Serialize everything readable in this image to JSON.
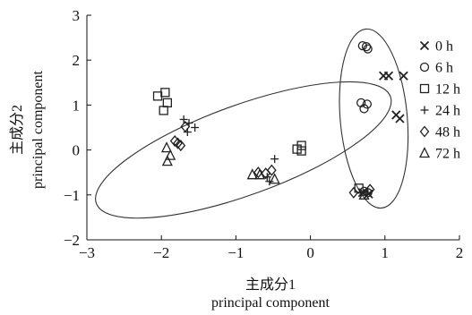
{
  "chart_data": {
    "type": "scatter",
    "xlabel_cn": "主成分1",
    "xlabel_en": "principal component",
    "ylabel_cn": "主成分2",
    "ylabel_en": "principal component",
    "xlim": [
      -3,
      2
    ],
    "ylim": [
      -2,
      3
    ],
    "xticks": [
      -3,
      -2,
      -1,
      0,
      1,
      2
    ],
    "yticks": [
      -2,
      -1,
      0,
      1,
      2,
      3
    ],
    "grid": false,
    "legend_position": "right",
    "marker_color": "#222222",
    "series": [
      {
        "name": "0 h",
        "marker": "x",
        "points": [
          [
            0.98,
            1.65
          ],
          [
            1.05,
            1.65
          ],
          [
            1.25,
            1.65
          ],
          [
            1.15,
            0.78
          ],
          [
            1.2,
            0.7
          ],
          [
            0.78,
            -0.98
          ],
          [
            0.7,
            -0.95
          ]
        ]
      },
      {
        "name": "6 h",
        "marker": "circle",
        "points": [
          [
            0.7,
            2.32
          ],
          [
            0.75,
            2.3
          ],
          [
            0.77,
            2.25
          ],
          [
            0.68,
            1.05
          ],
          [
            0.76,
            1.02
          ],
          [
            0.72,
            0.92
          ],
          [
            0.72,
            -0.92
          ],
          [
            0.77,
            -0.95
          ]
        ]
      },
      {
        "name": "12 h",
        "marker": "square",
        "points": [
          [
            -2.05,
            1.2
          ],
          [
            -1.95,
            1.28
          ],
          [
            -1.92,
            1.05
          ],
          [
            -1.97,
            0.88
          ],
          [
            -0.12,
            0.1
          ],
          [
            -0.18,
            0.02
          ],
          [
            -0.12,
            -0.02
          ],
          [
            0.65,
            -0.85
          ]
        ]
      },
      {
        "name": "24 h",
        "marker": "plus",
        "points": [
          [
            -1.7,
            0.68
          ],
          [
            -1.63,
            0.6
          ],
          [
            -1.55,
            0.5
          ],
          [
            -1.65,
            0.4
          ],
          [
            -0.48,
            -0.2
          ],
          [
            -0.58,
            -0.6
          ],
          [
            -0.55,
            -0.7
          ],
          [
            0.68,
            -0.96
          ]
        ]
      },
      {
        "name": "48 h",
        "marker": "diamond",
        "points": [
          [
            -1.82,
            0.2
          ],
          [
            -1.78,
            0.15
          ],
          [
            -1.74,
            0.1
          ],
          [
            -1.68,
            0.52
          ],
          [
            -0.7,
            -0.5
          ],
          [
            -0.6,
            -0.52
          ],
          [
            -0.52,
            -0.45
          ],
          [
            0.58,
            -0.95
          ],
          [
            0.8,
            -0.88
          ]
        ]
      },
      {
        "name": "72 h",
        "marker": "triangle",
        "points": [
          [
            -1.93,
            0.05
          ],
          [
            -1.88,
            -0.12
          ],
          [
            -1.92,
            -0.25
          ],
          [
            -0.78,
            -0.55
          ],
          [
            -0.68,
            -0.55
          ],
          [
            -0.48,
            -0.65
          ],
          [
            0.72,
            -1.0
          ]
        ]
      }
    ],
    "annotations": [
      {
        "shape": "ellipse",
        "cx": -0.9,
        "cy": 0.0,
        "rx": 2.1,
        "ry": 1.0,
        "rotation_deg": -20
      },
      {
        "shape": "ellipse",
        "cx": 0.85,
        "cy": 0.7,
        "rx": 0.45,
        "ry": 2.0,
        "rotation_deg": -5
      }
    ]
  }
}
